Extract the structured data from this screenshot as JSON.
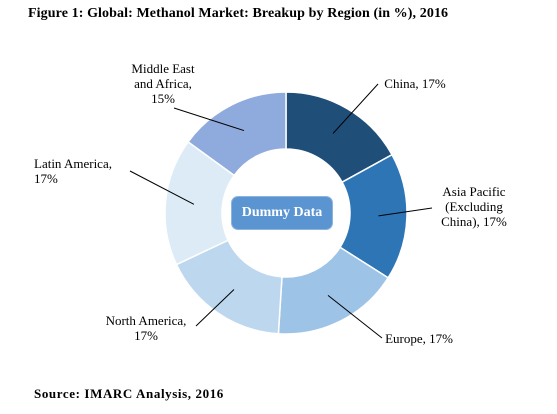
{
  "title": "Figure 1: Global: Methanol Market: Breakup by Region (in %), 2016",
  "source": "Source: IMARC Analysis, 2016",
  "watermark": "Dummy Data",
  "chart_data": {
    "type": "pie",
    "donut": true,
    "title": "Figure 1: Global: Methanol Market: Breakup by Region (in %), 2016",
    "slices": [
      {
        "label": "China, 17%",
        "category": "China",
        "value": 17,
        "color": "#1f4e79"
      },
      {
        "label": "Asia Pacific\n(Excluding\nChina), 17%",
        "category": "Asia Pacific (Excluding China)",
        "value": 17,
        "color": "#2e75b6"
      },
      {
        "label": "Europe, 17%",
        "category": "Europe",
        "value": 17,
        "color": "#9dc3e6"
      },
      {
        "label": "North America,\n17%",
        "category": "North America",
        "value": 17,
        "color": "#bdd7ee"
      },
      {
        "label": "Latin America,\n17%",
        "category": "Latin America",
        "value": 17,
        "color": "#ddebf7"
      },
      {
        "label": "Middle East\nand Africa,\n15%",
        "category": "Middle East and Africa",
        "value": 15,
        "color": "#8faadc"
      }
    ]
  }
}
